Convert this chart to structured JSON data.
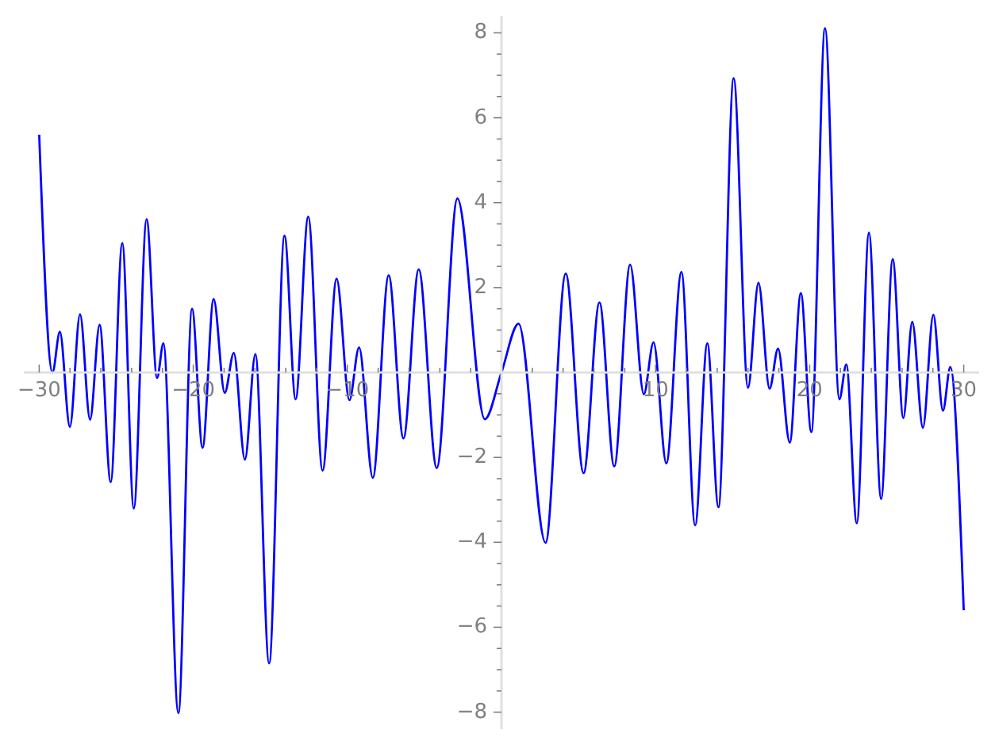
{
  "chart_data": {
    "type": "line",
    "color": "#0000ff",
    "x": [
      -30,
      -29.14,
      -28.66,
      -28.01,
      -27.35,
      -26.7,
      -26.08,
      -25.36,
      -24.61,
      -23.86,
      -23.03,
      -22.35,
      -21.94,
      -20.97,
      -20.08,
      -19.4,
      -18.68,
      -17.96,
      -17.37,
      -16.65,
      -15.97,
      -15.08,
      -14.08,
      -13.36,
      -12.54,
      -11.61,
      -10.7,
      -9.87,
      -9.24,
      -8.35,
      -7.32,
      -6.36,
      -5.37,
      -4.2,
      -2.86,
      -1.08,
      0,
      1.11,
      2.86,
      4.17,
      5.33,
      6.36,
      7.32,
      8.35,
      9.24,
      9.87,
      10.7,
      11.68,
      12.57,
      13.36,
      14.08,
      15.07,
      16,
      16.68,
      17.4,
      17.95,
      18.71,
      19.43,
      20.11,
      21,
      21.93,
      22.38,
      23.06,
      23.85,
      24.64,
      25.39,
      26.08,
      26.66,
      27.35,
      28.03,
      28.65,
      29.13,
      30
    ],
    "values": [
      5.6,
      0,
      0.96,
      -1.28,
      1.37,
      -1.11,
      1.12,
      -2.58,
      3.05,
      -3.2,
      3.61,
      -0.13,
      0.69,
      -8.02,
      1.5,
      -1.77,
      1.73,
      -0.48,
      0.46,
      -2.05,
      0.43,
      -6.85,
      3.22,
      -0.63,
      3.67,
      -2.31,
      2.21,
      -0.65,
      0.59,
      -2.48,
      2.29,
      -1.55,
      2.43,
      -2.25,
      4.1,
      -1.1,
      0,
      1.15,
      -4.01,
      2.33,
      -2.37,
      1.65,
      -2.21,
      2.54,
      -0.51,
      0.71,
      -2.14,
      2.37,
      -3.6,
      0.69,
      -3.17,
      6.93,
      -0.36,
      2.11,
      -0.38,
      0.56,
      -1.65,
      1.87,
      -1.4,
      8.11,
      -0.63,
      0.19,
      -3.55,
      3.29,
      -2.98,
      2.67,
      -1.07,
      1.19,
      -1.3,
      1.36,
      -0.9,
      0.13,
      -5.6
    ],
    "xlim": [
      -31,
      31
    ],
    "ylim": [
      -8.4,
      8.4
    ],
    "xticks": [
      -30,
      {
        "value": -28,
        "label": null
      },
      {
        "value": -26,
        "label": null
      },
      {
        "value": -24,
        "label": null
      },
      {
        "value": -22,
        "label": null
      },
      -20,
      {
        "value": -18,
        "label": null
      },
      {
        "value": -16,
        "label": null
      },
      {
        "value": -14,
        "label": null
      },
      {
        "value": -12,
        "label": null
      },
      -10,
      {
        "value": -8,
        "label": null
      },
      {
        "value": -6,
        "label": null
      },
      {
        "value": -4,
        "label": null
      },
      {
        "value": -2,
        "label": null
      },
      {
        "value": 2,
        "label": null
      },
      {
        "value": 4,
        "label": null
      },
      {
        "value": 6,
        "label": null
      },
      {
        "value": 8,
        "label": null
      },
      10,
      {
        "value": 12,
        "label": null
      },
      {
        "value": 14,
        "label": null
      },
      {
        "value": 16,
        "label": null
      },
      {
        "value": 18,
        "label": null
      },
      20,
      {
        "value": 22,
        "label": null
      },
      {
        "value": 24,
        "label": null
      },
      {
        "value": 26,
        "label": null
      },
      {
        "value": 28,
        "label": null
      },
      30
    ],
    "yticks": [
      -8,
      {
        "value": -7.5,
        "label": null
      },
      {
        "value": -7,
        "label": null
      },
      {
        "value": -6.5,
        "label": null
      },
      -6,
      {
        "value": -5.5,
        "label": null
      },
      {
        "value": -5,
        "label": null
      },
      {
        "value": -4.5,
        "label": null
      },
      -4,
      {
        "value": -3.5,
        "label": null
      },
      {
        "value": -3,
        "label": null
      },
      {
        "value": -2.5,
        "label": null
      },
      -2,
      {
        "value": -1.5,
        "label": null
      },
      {
        "value": -1,
        "label": null
      },
      {
        "value": -0.5,
        "label": null
      },
      {
        "value": 0.5,
        "label": null
      },
      {
        "value": 1,
        "label": null
      },
      {
        "value": 1.5,
        "label": null
      },
      2,
      {
        "value": 2.5,
        "label": null
      },
      {
        "value": 3,
        "label": null
      },
      {
        "value": 3.5,
        "label": null
      },
      4,
      {
        "value": 4.5,
        "label": null
      },
      {
        "value": 5,
        "label": null
      },
      {
        "value": 5.5,
        "label": null
      },
      6,
      {
        "value": 6.5,
        "label": null
      },
      {
        "value": 7,
        "label": null
      },
      {
        "value": 7.5,
        "label": null
      },
      8
    ]
  }
}
